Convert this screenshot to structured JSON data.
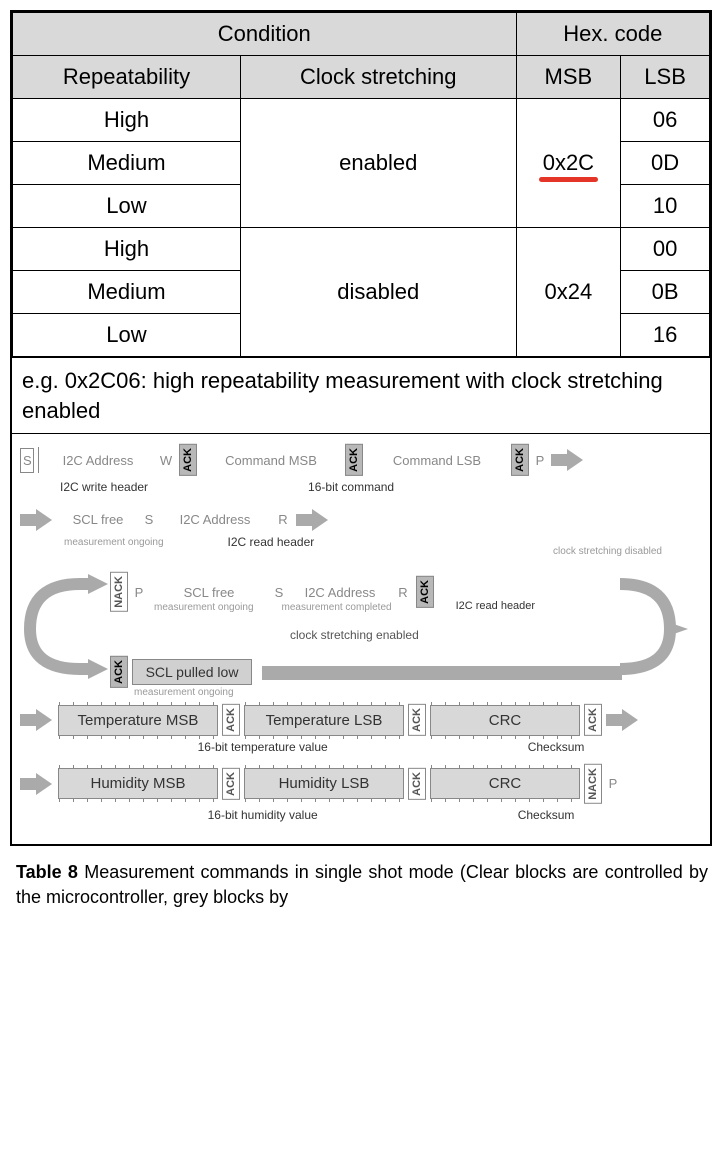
{
  "table": {
    "header_group1": "Condition",
    "header_group2": "Hex. code",
    "col1": "Repeatability",
    "col2": "Clock stretching",
    "col3": "MSB",
    "col4": "LSB",
    "groups": [
      {
        "stretching": "enabled",
        "msb": "0x2C",
        "msb_highlight": true,
        "rows": [
          {
            "rep": "High",
            "lsb": "06"
          },
          {
            "rep": "Medium",
            "lsb": "0D"
          },
          {
            "rep": "Low",
            "lsb": "10"
          }
        ]
      },
      {
        "stretching": "disabled",
        "msb": "0x24",
        "msb_highlight": false,
        "rows": [
          {
            "rep": "High",
            "lsb": "00"
          },
          {
            "rep": "Medium",
            "lsb": "0B"
          },
          {
            "rep": "Low",
            "lsb": "16"
          }
        ]
      }
    ],
    "example": "e.g. 0x2C06: high repeatability measurement with clock stretching enabled"
  },
  "diagram": {
    "row1": {
      "s": "S",
      "addr": "I2C Address",
      "w": "W",
      "ack": "ACK",
      "cmd_msb": "Command MSB",
      "cmd_lsb": "Command LSB",
      "p": "P",
      "sub_left": "I2C write header",
      "sub_right": "16-bit command"
    },
    "row2": {
      "scl_free": "SCL free",
      "s": "S",
      "addr": "I2C Address",
      "r": "R",
      "meas_ongoing": "measurement ongoing",
      "read_header": "I2C read header"
    },
    "branch": {
      "disabled_label": "clock stretching disabled",
      "enabled_label": "clock stretching enabled",
      "nack": "NACK",
      "p": "P",
      "scl_free": "SCL free",
      "s": "S",
      "addr": "I2C Address",
      "r": "R",
      "ack": "ACK",
      "read_header": "I2C read header",
      "scl_pulled": "SCL pulled low",
      "meas_ongoing": "measurement ongoing",
      "meas_completed": "measurement completed"
    },
    "temp": {
      "msb": "Temperature MSB",
      "lsb": "Temperature LSB",
      "crc": "CRC",
      "ack": "ACK",
      "value_label": "16-bit temperature value",
      "checksum": "Checksum"
    },
    "hum": {
      "msb": "Humidity MSB",
      "lsb": "Humidity LSB",
      "crc": "CRC",
      "ack": "ACK",
      "nack": "NACK",
      "p": "P",
      "value_label": "16-bit humidity value",
      "checksum": "Checksum"
    }
  },
  "caption": {
    "bold": "Table 8",
    "text": " Measurement commands in single shot mode (Clear blocks are controlled by the microcontroller, grey blocks by"
  },
  "colors": {
    "header_bg": "#d9d9d9",
    "border": "#000000",
    "underline": "#e53528",
    "grey_block": "#b8b8b8",
    "data_block": "#d8d8d8",
    "arrow": "#aaaaaa",
    "faint_text": "#888888"
  }
}
